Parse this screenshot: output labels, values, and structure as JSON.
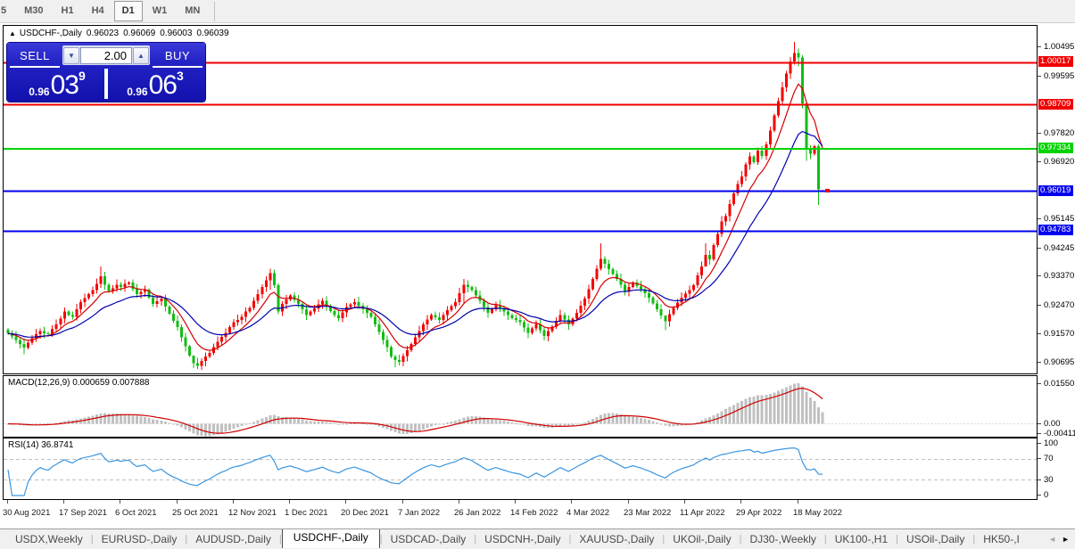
{
  "toolbar": {
    "timeframes": [
      {
        "label": "5",
        "active": false
      },
      {
        "label": "M30",
        "active": false
      },
      {
        "label": "H1",
        "active": false
      },
      {
        "label": "H4",
        "active": false
      },
      {
        "label": "D1",
        "active": true
      },
      {
        "label": "W1",
        "active": false
      },
      {
        "label": "MN",
        "active": false
      }
    ]
  },
  "quote_bar": {
    "expand_icon": "▲",
    "symbol_title": "USDCHF-,Daily",
    "open": "0.96023",
    "high": "0.96069",
    "low": "0.96003",
    "close": "0.96039"
  },
  "trade_panel": {
    "sell_label": "SELL",
    "buy_label": "BUY",
    "volume": "2.00",
    "spin_down_icon": "▼",
    "spin_up_icon": "▲",
    "sell_price": {
      "small": "0.96",
      "big": "03",
      "sup": "9"
    },
    "buy_price": {
      "small": "0.96",
      "big": "06",
      "sup": "3"
    }
  },
  "chart_data": {
    "type": "candlestick",
    "title": "USDCHF-,Daily",
    "bull_color": "#f40000",
    "bear_color": "#12bd12",
    "y_range": [
      0.9036,
      1.0116
    ],
    "price_axis_labels": [
      1.00495,
      0.99595,
      0.9782,
      0.9692,
      0.95145,
      0.94245,
      0.9337,
      0.9247,
      0.9157,
      0.90695
    ],
    "level_lines": [
      {
        "price": 1.00017,
        "label": "1.00017",
        "color": "#f00000"
      },
      {
        "price": 0.98709,
        "label": "0.98709",
        "color": "#f00000"
      },
      {
        "price": 0.97334,
        "label": "0.97334",
        "color": "#00d400"
      },
      {
        "price": 0.96019,
        "label": "0.96019",
        "color": "#0000ee"
      },
      {
        "price": 0.94783,
        "label": "0.94783",
        "color": "#0000ee"
      }
    ],
    "current_price": 0.96039,
    "current_price_color": "#f40000",
    "first_open": 0.9172,
    "closes": [
      0.916,
      0.9151,
      0.914,
      0.9127,
      0.9116,
      0.9132,
      0.9145,
      0.9158,
      0.9168,
      0.9161,
      0.9158,
      0.9175,
      0.9188,
      0.9207,
      0.9228,
      0.9218,
      0.9212,
      0.9236,
      0.9258,
      0.927,
      0.9282,
      0.9295,
      0.9315,
      0.9338,
      0.9312,
      0.9292,
      0.93,
      0.9312,
      0.9305,
      0.9315,
      0.9318,
      0.9298,
      0.9282,
      0.929,
      0.9296,
      0.9272,
      0.9252,
      0.926,
      0.9268,
      0.9244,
      0.9222,
      0.92,
      0.918,
      0.9148,
      0.912,
      0.9092,
      0.9068,
      0.906,
      0.9075,
      0.9088,
      0.91,
      0.9118,
      0.9135,
      0.915,
      0.9162,
      0.918,
      0.9195,
      0.9202,
      0.9212,
      0.9228,
      0.924,
      0.9262,
      0.9282,
      0.9305,
      0.9325,
      0.9348,
      0.931,
      0.9228,
      0.9252,
      0.9266,
      0.9278,
      0.9264,
      0.9252,
      0.9235,
      0.9218,
      0.9228,
      0.9238,
      0.925,
      0.9262,
      0.9246,
      0.923,
      0.9218,
      0.9208,
      0.9226,
      0.9242,
      0.925,
      0.9258,
      0.9247,
      0.9235,
      0.9224,
      0.9212,
      0.9188,
      0.9165,
      0.914,
      0.9118,
      0.9088,
      0.9078,
      0.9072,
      0.909,
      0.9108,
      0.9128,
      0.9148,
      0.9168,
      0.9188,
      0.9204,
      0.9218,
      0.921,
      0.9202,
      0.9218,
      0.9232,
      0.9245,
      0.9258,
      0.9285,
      0.9312,
      0.9304,
      0.9295,
      0.9278,
      0.9262,
      0.9242,
      0.9225,
      0.9236,
      0.9248,
      0.9238,
      0.9228,
      0.9218,
      0.9208,
      0.9202,
      0.9195,
      0.9178,
      0.9162,
      0.9176,
      0.919,
      0.9171,
      0.9152,
      0.9167,
      0.9182,
      0.92,
      0.9218,
      0.9203,
      0.9188,
      0.9206,
      0.9225,
      0.9246,
      0.9268,
      0.9298,
      0.933,
      0.9362,
      0.9392,
      0.9376,
      0.936,
      0.9345,
      0.933,
      0.9311,
      0.9292,
      0.9305,
      0.9318,
      0.9308,
      0.9298,
      0.9285,
      0.9272,
      0.9254,
      0.9235,
      0.9216,
      0.9198,
      0.922,
      0.924,
      0.9256,
      0.9272,
      0.9284,
      0.9295,
      0.931,
      0.934,
      0.9368,
      0.9405,
      0.939,
      0.9435,
      0.947,
      0.9508,
      0.9525,
      0.9562,
      0.9595,
      0.9625,
      0.9648,
      0.9685,
      0.971,
      0.9692,
      0.9728,
      0.9712,
      0.9748,
      0.979,
      0.9838,
      0.9882,
      0.9925,
      0.9968,
      1.0005,
      1.0032,
      1.0018,
      0.9875,
      0.9732,
      0.9718,
      0.9742,
      0.9608,
      0.96039
    ],
    "open_overrides": {
      "202": 0.96023
    },
    "wick_overrides": {
      "4": [
        0.9146,
        0.9096
      ],
      "23": [
        0.9368,
        0.9302
      ],
      "46": [
        0.9076,
        0.9052
      ],
      "65": [
        0.9362,
        0.9296
      ],
      "67": [
        0.9316,
        0.922
      ],
      "96": [
        0.9094,
        0.9056
      ],
      "113": [
        0.933,
        0.9255
      ],
      "147": [
        0.944,
        0.9356
      ],
      "163": [
        0.9214,
        0.917
      ],
      "173": [
        0.944,
        0.9372
      ],
      "195": [
        1.0066,
        0.9996
      ],
      "196": [
        1.0046,
        0.999
      ],
      "197": [
        1.0024,
        0.986
      ],
      "198": [
        0.988,
        0.9696
      ],
      "201": [
        0.9748,
        0.956
      ],
      "202": [
        0.96069,
        0.96003
      ]
    },
    "ma_fast": {
      "period": 8,
      "color": "#d40000"
    },
    "ma_slow": {
      "period": 20,
      "color": "#0000b0"
    },
    "macd": {
      "label": "MACD(12,26,9) 0.000659 0.007888",
      "params": [
        12,
        26,
        9
      ],
      "value": "0.000659",
      "signal_value": "0.007888",
      "axis_labels": [
        "0.01550",
        "0.00",
        "-0.00411"
      ],
      "axis_values": [
        0.0155,
        0.0,
        -0.00411
      ],
      "range": [
        -0.005,
        0.0185
      ],
      "hist_color": "#c0c0c0",
      "line_color": "#d00000"
    },
    "rsi": {
      "label": "RSI(14) 36.8741",
      "period": 14,
      "value": "36.8741",
      "levels": [
        70,
        30
      ],
      "axis_labels": [
        "100",
        "70",
        "30",
        "0"
      ],
      "axis_values": [
        100,
        70,
        30,
        0
      ],
      "color": "#3b96e0",
      "level_color": "#c0c0c0"
    },
    "x_axis": {
      "tick_x": [
        8,
        71,
        134,
        198,
        261,
        324,
        387,
        451,
        514,
        577,
        640,
        704,
        767,
        830,
        894
      ],
      "labels": [
        "30 Aug 2021",
        "17 Sep 2021",
        "6 Oct 2021",
        "25 Oct 2021",
        "12 Nov 2021",
        "1 Dec 2021",
        "20 Dec 2021",
        "7 Jan 2022",
        "26 Jan 2022",
        "14 Feb 2022",
        "4 Mar 2022",
        "23 Mar 2022",
        "11 Apr 2022",
        "29 Apr 2022",
        "18 May 2022"
      ],
      "first_x": 8,
      "step": 4.52
    }
  },
  "tabs": {
    "separator": "|",
    "items": [
      {
        "label": "USDX,Weekly",
        "active": false
      },
      {
        "label": "EURUSD-,Daily",
        "active": false
      },
      {
        "label": "AUDUSD-,Daily",
        "active": false
      },
      {
        "label": "USDCHF-,Daily",
        "active": true
      },
      {
        "label": "USDCAD-,Daily",
        "active": false
      },
      {
        "label": "USDCNH-,Daily",
        "active": false
      },
      {
        "label": "XAUUSD-,Daily",
        "active": false
      },
      {
        "label": "UKOil-,Daily",
        "active": false
      },
      {
        "label": "DJ30-,Weekly",
        "active": false
      },
      {
        "label": "UK100-,H1",
        "active": false
      },
      {
        "label": "USOil-,Daily",
        "active": false
      },
      {
        "label": "HK50-,I",
        "active": false
      }
    ],
    "scroll_left_icon": "◄",
    "scroll_right_icon": "►"
  }
}
